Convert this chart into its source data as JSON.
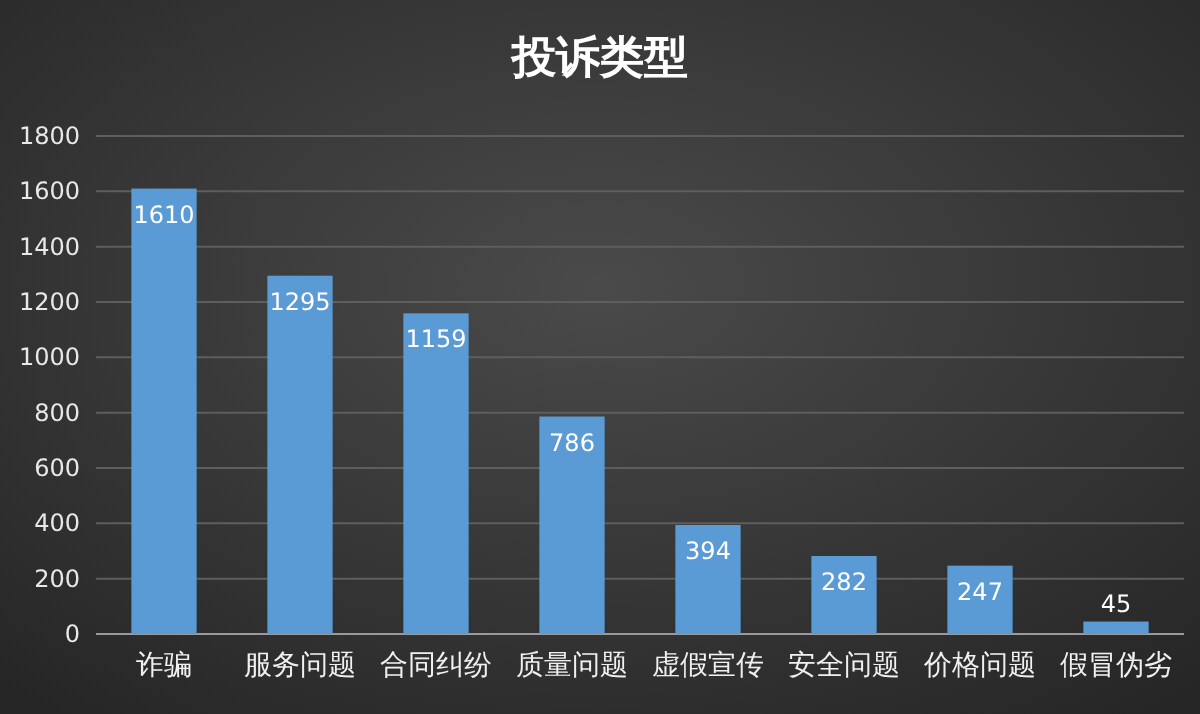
{
  "chart_data": {
    "type": "bar",
    "title": "投诉类型",
    "categories": [
      "诈骗",
      "服务问题",
      "合同纠纷",
      "质量问题",
      "虚假宣传",
      "安全问题",
      "价格问题",
      "假冒伪劣"
    ],
    "values": [
      1610,
      1295,
      1159,
      786,
      394,
      282,
      247,
      45
    ],
    "color": "#5b9bd5",
    "ylim": [
      0,
      1800
    ],
    "yticks": [
      0,
      200,
      400,
      600,
      800,
      1000,
      1200,
      1400,
      1600,
      1800
    ],
    "grid": "y",
    "data_labels": true
  }
}
